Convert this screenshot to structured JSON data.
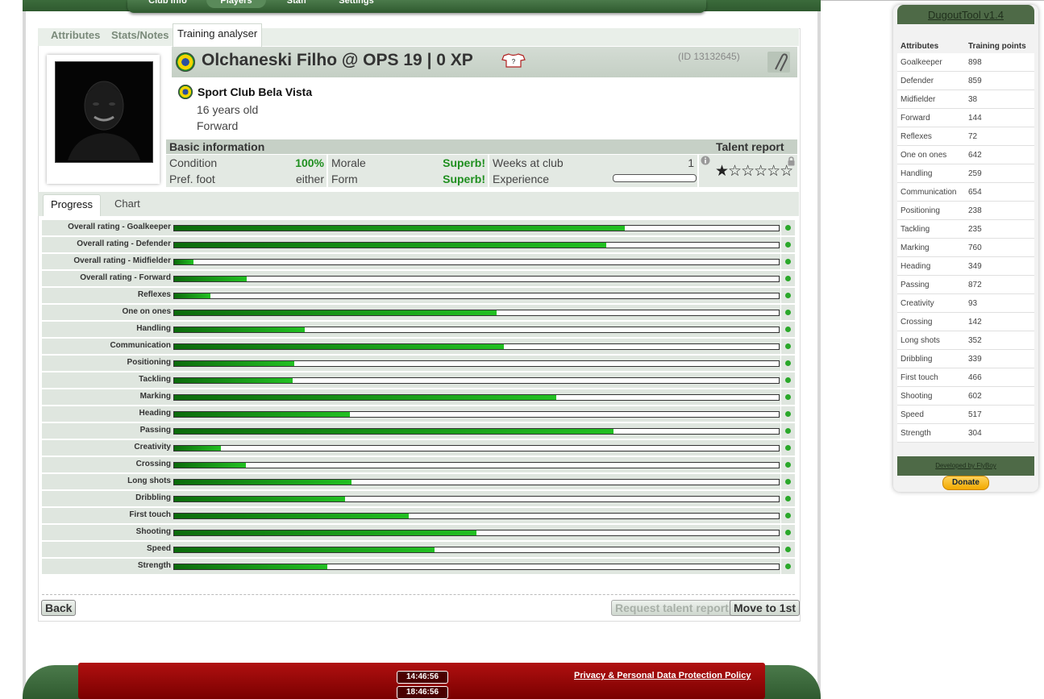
{
  "nav": {
    "tabs": [
      "Club info",
      "Players",
      "Staff",
      "Settings"
    ],
    "active": "Players"
  },
  "subtabs": [
    "Attributes",
    "Stats/Notes",
    "Training analyser"
  ],
  "player": {
    "name_line": "Olchaneski Filho @ OPS 19 | 0 XP",
    "id": "(ID 13132645)",
    "club": "Sport Club Bela Vista",
    "age": "16 years old",
    "position": "Forward"
  },
  "basic": {
    "title": "Basic information",
    "talent_title": "Talent report",
    "condition_label": "Condition",
    "condition_value": "100%",
    "morale_label": "Morale",
    "morale_value": "Superb!",
    "weeks_label": "Weeks at club",
    "weeks_value": "1",
    "foot_label": "Pref. foot",
    "foot_value": "either",
    "form_label": "Form",
    "form_value": "Superb!",
    "experience_label": "Experience",
    "experience_progress": 0,
    "talent_stars_filled": 0.5,
    "talent_stars_total": 6
  },
  "progress_tabs": [
    "Progress",
    "Chart"
  ],
  "progress_rows": [
    {
      "label": "Overall rating - Goalkeeper",
      "value": 0.745
    },
    {
      "label": "Overall rating - Defender",
      "value": 0.715
    },
    {
      "label": "Overall rating - Midfielder",
      "value": 0.032
    },
    {
      "label": "Overall rating - Forward",
      "value": 0.12
    },
    {
      "label": "Reflexes",
      "value": 0.06
    },
    {
      "label": "One on ones",
      "value": 0.533
    },
    {
      "label": "Handling",
      "value": 0.216
    },
    {
      "label": "Communication",
      "value": 0.545
    },
    {
      "label": "Positioning",
      "value": 0.198
    },
    {
      "label": "Tackling",
      "value": 0.196
    },
    {
      "label": "Marking",
      "value": 0.632
    },
    {
      "label": "Heading",
      "value": 0.29
    },
    {
      "label": "Passing",
      "value": 0.726
    },
    {
      "label": "Creativity",
      "value": 0.077
    },
    {
      "label": "Crossing",
      "value": 0.118
    },
    {
      "label": "Long shots",
      "value": 0.293
    },
    {
      "label": "Dribbling",
      "value": 0.282
    },
    {
      "label": "First touch",
      "value": 0.388
    },
    {
      "label": "Shooting",
      "value": 0.5
    },
    {
      "label": "Speed",
      "value": 0.43
    },
    {
      "label": "Strength",
      "value": 0.253
    }
  ],
  "buttons": {
    "back": "Back",
    "request": "Request talent report",
    "move": "Move to 1st"
  },
  "footer": {
    "time1": "14:46:56",
    "time2": "18:46:56",
    "privacy": "Privacy & Personal Data Protection Policy"
  },
  "dugout": {
    "title": "DugoutTool v1.4",
    "col1": "Attributes",
    "col2": "Training points",
    "rows": [
      [
        "Goalkeeper",
        "898"
      ],
      [
        "Defender",
        "859"
      ],
      [
        "Midfielder",
        "38"
      ],
      [
        "Forward",
        "144"
      ],
      [
        "Reflexes",
        "72"
      ],
      [
        "One on ones",
        "642"
      ],
      [
        "Handling",
        "259"
      ],
      [
        "Communication",
        "654"
      ],
      [
        "Positioning",
        "238"
      ],
      [
        "Tackling",
        "235"
      ],
      [
        "Marking",
        "760"
      ],
      [
        "Heading",
        "349"
      ],
      [
        "Passing",
        "872"
      ],
      [
        "Creativity",
        "93"
      ],
      [
        "Crossing",
        "142"
      ],
      [
        "Long shots",
        "352"
      ],
      [
        "Dribbling",
        "339"
      ],
      [
        "First touch",
        "466"
      ],
      [
        "Shooting",
        "602"
      ],
      [
        "Speed",
        "517"
      ],
      [
        "Strength",
        "304"
      ]
    ],
    "developed": "Developed by FlyBoy",
    "donate": "Donate"
  }
}
